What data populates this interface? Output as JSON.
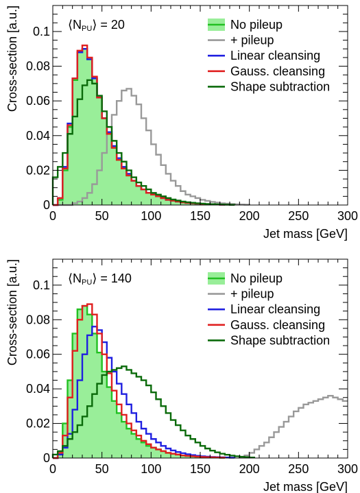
{
  "chart_data": [
    {
      "type": "step",
      "annotation": {
        "prefix": "⟨N",
        "sub": "PU",
        "suffix": "⟩ = 20"
      },
      "xlabel": "Jet mass [GeV]",
      "ylabel": "Cross-section [a.u.]",
      "xlim": [
        0,
        300
      ],
      "ylim": [
        0,
        0.115
      ],
      "xticks": [
        "0",
        "50",
        "100",
        "150",
        "200",
        "250",
        "300"
      ],
      "yticks": [
        "0",
        "0.02",
        "0.04",
        "0.06",
        "0.08",
        "0.1"
      ],
      "legend_position": "top-right",
      "bin_width": 5,
      "series": [
        {
          "name": "No pileup",
          "color": "#22c022",
          "fill": "#99ee99",
          "x": [
            0,
            5,
            10,
            15,
            20,
            25,
            30,
            35,
            40,
            45,
            50,
            55,
            60,
            65,
            70,
            75,
            80,
            85,
            90,
            95,
            100,
            105,
            110,
            115,
            120,
            125,
            130,
            135,
            140,
            145,
            150,
            155,
            160,
            165,
            170
          ],
          "y": [
            0,
            0.003,
            0.02,
            0.045,
            0.072,
            0.088,
            0.09,
            0.084,
            0.073,
            0.062,
            0.05,
            0.041,
            0.033,
            0.026,
            0.021,
            0.017,
            0.014,
            0.011,
            0.009,
            0.007,
            0.006,
            0.005,
            0.004,
            0.003,
            0.0025,
            0.002,
            0.0015,
            0.0012,
            0.001,
            0.0008,
            0.0006,
            0.0005,
            0.0004,
            0.0003,
            0.0002
          ]
        },
        {
          "name": "+ pileup",
          "color": "#999999",
          "x": [
            0,
            5,
            10,
            15,
            20,
            25,
            30,
            35,
            40,
            45,
            50,
            55,
            60,
            65,
            70,
            75,
            80,
            85,
            90,
            95,
            100,
            105,
            110,
            115,
            120,
            125,
            130,
            135,
            140,
            145,
            150,
            155,
            160,
            165,
            170,
            175,
            180,
            185,
            190,
            195
          ],
          "y": [
            0,
            0,
            0,
            0,
            0.001,
            0.002,
            0.004,
            0.007,
            0.012,
            0.02,
            0.03,
            0.042,
            0.052,
            0.06,
            0.066,
            0.067,
            0.063,
            0.058,
            0.05,
            0.043,
            0.035,
            0.029,
            0.023,
            0.018,
            0.014,
            0.011,
            0.008,
            0.006,
            0.005,
            0.004,
            0.003,
            0.0024,
            0.0018,
            0.0014,
            0.001,
            0.0008,
            0.0006,
            0.0004,
            0.0003,
            0.0002
          ]
        },
        {
          "name": "Linear cleansing",
          "color": "#1f1fe0",
          "x": [
            0,
            5,
            10,
            15,
            20,
            25,
            30,
            35,
            40,
            45,
            50,
            55,
            60,
            65,
            70,
            75,
            80,
            85,
            90,
            95,
            100,
            105,
            110,
            115,
            120,
            125,
            130,
            135,
            140,
            145,
            150,
            155,
            160,
            165,
            170
          ],
          "y": [
            0,
            0.004,
            0.022,
            0.047,
            0.073,
            0.088,
            0.09,
            0.084,
            0.073,
            0.062,
            0.05,
            0.042,
            0.034,
            0.027,
            0.022,
            0.018,
            0.014,
            0.011,
            0.009,
            0.007,
            0.006,
            0.005,
            0.004,
            0.003,
            0.0026,
            0.002,
            0.0016,
            0.0012,
            0.001,
            0.0008,
            0.0006,
            0.0005,
            0.0004,
            0.0003,
            0.0002
          ]
        },
        {
          "name": "Gauss. cleansing",
          "color": "#e01f1f",
          "x": [
            0,
            5,
            10,
            15,
            20,
            25,
            30,
            35,
            40,
            45,
            50,
            55,
            60,
            65,
            70,
            75,
            80,
            85,
            90,
            95,
            100,
            105,
            110,
            115,
            120,
            125,
            130,
            135,
            140,
            145,
            150,
            155,
            160,
            165,
            170
          ],
          "y": [
            0,
            0.004,
            0.021,
            0.046,
            0.073,
            0.089,
            0.092,
            0.085,
            0.074,
            0.062,
            0.05,
            0.041,
            0.033,
            0.026,
            0.021,
            0.017,
            0.014,
            0.011,
            0.009,
            0.007,
            0.006,
            0.005,
            0.004,
            0.003,
            0.0025,
            0.002,
            0.0015,
            0.0012,
            0.001,
            0.0008,
            0.0006,
            0.0005,
            0.0004,
            0.0003,
            0.0002
          ]
        },
        {
          "name": "Shape subtraction",
          "color": "#0a6a0a",
          "x": [
            0,
            5,
            10,
            15,
            20,
            25,
            30,
            35,
            40,
            45,
            50,
            55,
            60,
            65,
            70,
            75,
            80,
            85,
            90,
            95,
            100,
            105,
            110,
            115,
            120,
            125,
            130,
            135,
            140,
            145,
            150,
            155,
            160,
            165,
            170,
            175,
            180
          ],
          "y": [
            0.016,
            0.022,
            0.03,
            0.041,
            0.051,
            0.061,
            0.069,
            0.072,
            0.07,
            0.063,
            0.054,
            0.045,
            0.037,
            0.03,
            0.025,
            0.02,
            0.016,
            0.013,
            0.011,
            0.009,
            0.007,
            0.006,
            0.005,
            0.004,
            0.0032,
            0.0026,
            0.002,
            0.0016,
            0.0013,
            0.001,
            0.0008,
            0.0006,
            0.0005,
            0.0004,
            0.0003,
            0.0002,
            0.0001
          ]
        }
      ]
    },
    {
      "type": "step",
      "annotation": {
        "prefix": "⟨N",
        "sub": "PU",
        "suffix": "⟩ = 140"
      },
      "xlabel": "Jet mass [GeV]",
      "ylabel": "Cross-section [a.u.]",
      "xlim": [
        0,
        300
      ],
      "ylim": [
        0,
        0.115
      ],
      "xticks": [
        "0",
        "50",
        "100",
        "150",
        "200",
        "250",
        "300"
      ],
      "yticks": [
        "0",
        "0.02",
        "0.04",
        "0.06",
        "0.08",
        "0.1"
      ],
      "legend_position": "top-right",
      "bin_width": 5,
      "series": [
        {
          "name": "No pileup",
          "color": "#22c022",
          "fill": "#99ee99",
          "x": [
            0,
            5,
            10,
            15,
            20,
            25,
            30,
            35,
            40,
            45,
            50,
            55,
            60,
            65,
            70,
            75,
            80,
            85,
            90,
            95,
            100,
            105,
            110,
            115,
            120,
            125,
            130,
            135,
            140,
            145,
            150,
            155,
            160,
            165,
            170
          ],
          "y": [
            0,
            0.003,
            0.02,
            0.045,
            0.072,
            0.086,
            0.088,
            0.083,
            0.072,
            0.061,
            0.05,
            0.041,
            0.033,
            0.026,
            0.021,
            0.017,
            0.014,
            0.011,
            0.009,
            0.007,
            0.006,
            0.005,
            0.004,
            0.003,
            0.0025,
            0.002,
            0.0015,
            0.0012,
            0.001,
            0.0008,
            0.0006,
            0.0005,
            0.0004,
            0.0003,
            0.0002
          ]
        },
        {
          "name": "+ pileup",
          "color": "#999999",
          "x": [
            190,
            195,
            200,
            205,
            210,
            215,
            220,
            225,
            230,
            235,
            240,
            245,
            250,
            255,
            260,
            265,
            270,
            275,
            280,
            285,
            290,
            295
          ],
          "y": [
            0.0008,
            0.0015,
            0.003,
            0.005,
            0.007,
            0.009,
            0.012,
            0.015,
            0.018,
            0.021,
            0.024,
            0.027,
            0.029,
            0.031,
            0.032,
            0.033,
            0.034,
            0.035,
            0.036,
            0.035,
            0.034,
            0.033
          ]
        },
        {
          "name": "Linear cleansing",
          "color": "#1f1fe0",
          "x": [
            0,
            5,
            10,
            15,
            20,
            25,
            30,
            35,
            40,
            45,
            50,
            55,
            60,
            65,
            70,
            75,
            80,
            85,
            90,
            95,
            100,
            105,
            110,
            115,
            120,
            125,
            130,
            135,
            140,
            145,
            150,
            155,
            160,
            165,
            170,
            175,
            180
          ],
          "y": [
            0,
            0.002,
            0.006,
            0.014,
            0.028,
            0.045,
            0.06,
            0.071,
            0.076,
            0.074,
            0.067,
            0.058,
            0.05,
            0.043,
            0.037,
            0.031,
            0.026,
            0.021,
            0.017,
            0.014,
            0.011,
            0.009,
            0.007,
            0.0055,
            0.0044,
            0.0035,
            0.0028,
            0.0022,
            0.0017,
            0.0013,
            0.001,
            0.0008,
            0.0006,
            0.0005,
            0.0004,
            0.0003,
            0.0002
          ]
        },
        {
          "name": "Gauss. cleansing",
          "color": "#e01f1f",
          "x": [
            0,
            5,
            10,
            15,
            20,
            25,
            30,
            35,
            40,
            45,
            50,
            55,
            60,
            65,
            70,
            75,
            80,
            85,
            90,
            95,
            100,
            105,
            110,
            115,
            120,
            125,
            130,
            135,
            140,
            145,
            150,
            155,
            160,
            165,
            170
          ],
          "y": [
            0,
            0.003,
            0.013,
            0.035,
            0.062,
            0.08,
            0.088,
            0.089,
            0.083,
            0.072,
            0.06,
            0.049,
            0.039,
            0.031,
            0.025,
            0.02,
            0.016,
            0.013,
            0.01,
            0.008,
            0.006,
            0.005,
            0.004,
            0.003,
            0.0025,
            0.002,
            0.0015,
            0.0012,
            0.001,
            0.0008,
            0.0006,
            0.0005,
            0.0004,
            0.0003,
            0.0002
          ]
        },
        {
          "name": "Shape subtraction",
          "color": "#0a6a0a",
          "x": [
            0,
            5,
            10,
            15,
            20,
            25,
            30,
            35,
            40,
            45,
            50,
            55,
            60,
            65,
            70,
            75,
            80,
            85,
            90,
            95,
            100,
            105,
            110,
            115,
            120,
            125,
            130,
            135,
            140,
            145,
            150,
            155,
            160,
            165,
            170,
            175,
            180,
            185,
            190,
            195,
            200
          ],
          "y": [
            0.002,
            0.004,
            0.007,
            0.011,
            0.015,
            0.019,
            0.024,
            0.03,
            0.037,
            0.043,
            0.048,
            0.05,
            0.051,
            0.052,
            0.053,
            0.051,
            0.049,
            0.047,
            0.045,
            0.042,
            0.038,
            0.034,
            0.03,
            0.026,
            0.022,
            0.019,
            0.016,
            0.013,
            0.011,
            0.009,
            0.007,
            0.0055,
            0.0043,
            0.0033,
            0.0025,
            0.0019,
            0.0014,
            0.001,
            0.0007,
            0.0005,
            0.0003
          ]
        }
      ]
    }
  ]
}
